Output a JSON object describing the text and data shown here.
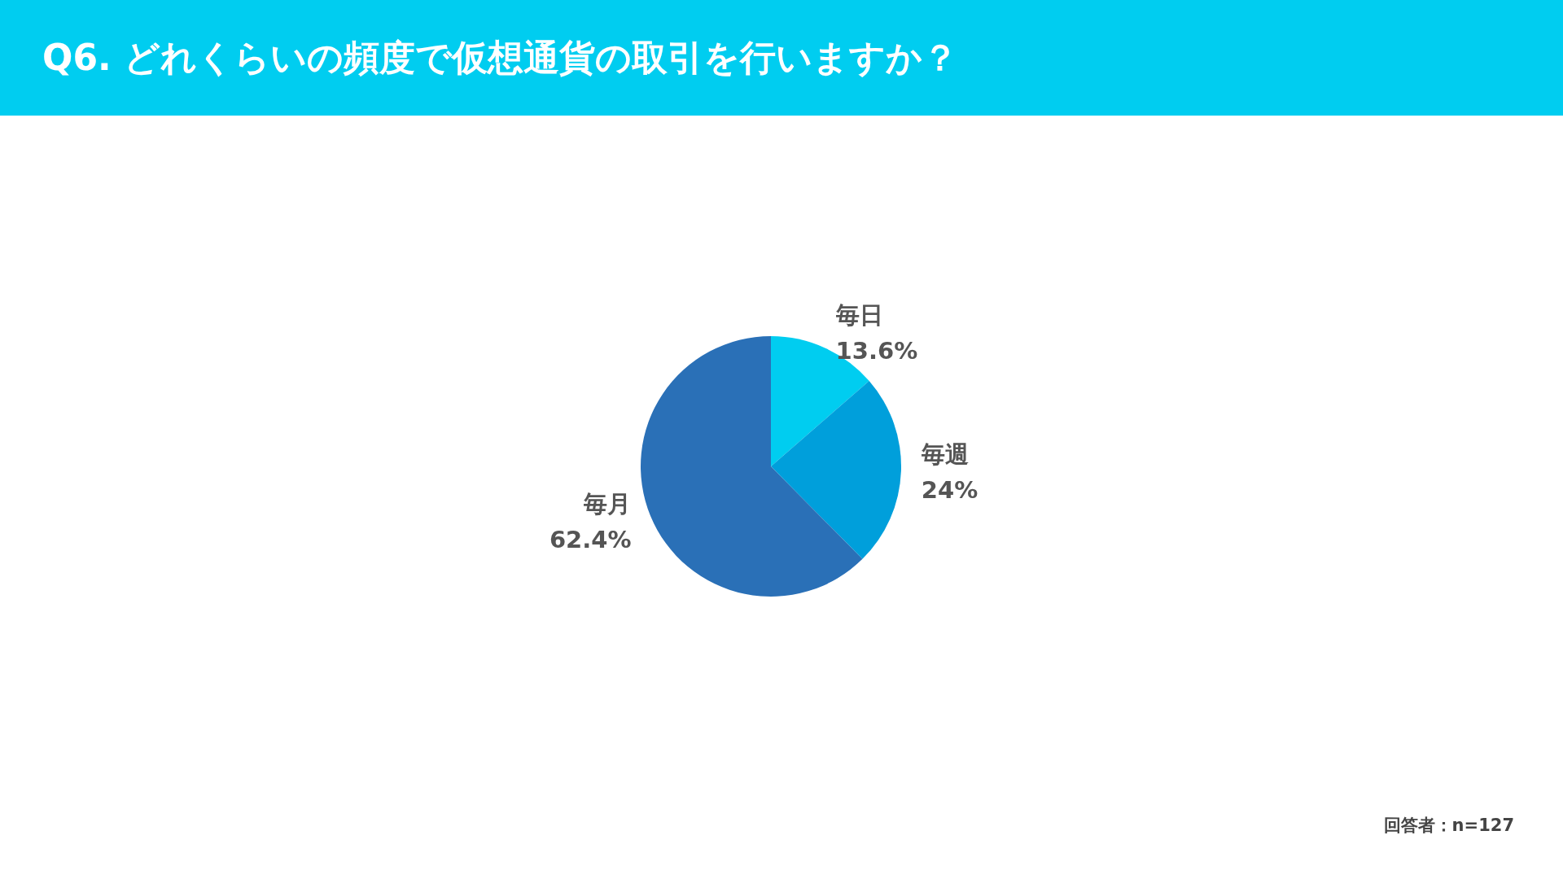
{
  "chart_data": {
    "type": "pie",
    "title": "Q6. どれくらいの頻度で仮想通貨の取引を行いますか？",
    "categories": [
      "毎日",
      "毎週",
      "毎月"
    ],
    "values": [
      13.6,
      24,
      62.4
    ],
    "colors": [
      "#00cdf0",
      "#009fdb",
      "#2a70b7"
    ],
    "value_labels": [
      "13.6%",
      "24%",
      "62.4%"
    ],
    "annotations": [
      "回答者：n=127"
    ]
  }
}
